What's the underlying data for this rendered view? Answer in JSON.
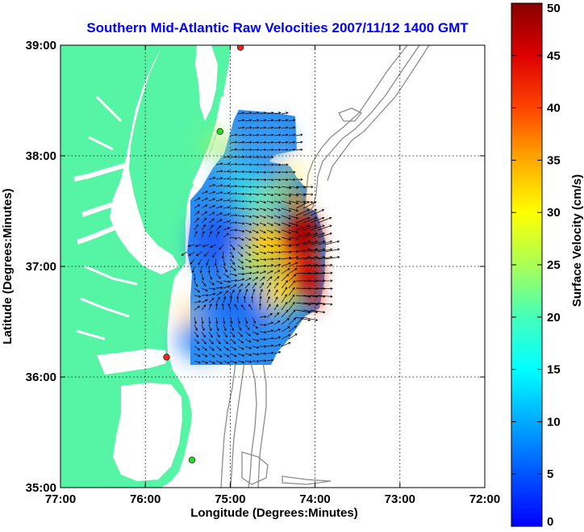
{
  "chart_data": {
    "type": "heatmap",
    "title": "Southern Mid-Atlantic Raw Velocities 2007/11/12 1400 GMT",
    "xlabel": "Longitude (Degrees:Minutes)",
    "ylabel": "Latitude (Degrees:Minutes)",
    "colorbar_label": "Surface Velocity (cm/s)",
    "x_ticks": [
      "77:00",
      "76:00",
      "75:00",
      "74:00",
      "73:00",
      "72:00"
    ],
    "y_ticks": [
      "39:00",
      "38:00",
      "37:00",
      "36:00",
      "35:00"
    ],
    "colorbar_ticks": [
      "50",
      "45",
      "40",
      "35",
      "30",
      "25",
      "20",
      "15",
      "10",
      "5",
      "0"
    ],
    "xlim_deg_west": [
      77,
      72
    ],
    "ylim_deg_north": [
      35,
      39
    ],
    "clim": [
      0,
      50
    ],
    "colormap": "jet",
    "grid": "dotted",
    "land_color": "#55f5a5",
    "water_color": "#ffffff",
    "station_markers": [
      {
        "lon": -74.88,
        "lat": 38.98,
        "color": "#ff2020"
      },
      {
        "lon": -75.12,
        "lat": 38.22,
        "color": "#22dd22"
      },
      {
        "lon": -75.75,
        "lat": 36.18,
        "color": "#ff2020"
      },
      {
        "lon": -75.45,
        "lat": 35.25,
        "color": "#22dd22"
      }
    ]
  }
}
